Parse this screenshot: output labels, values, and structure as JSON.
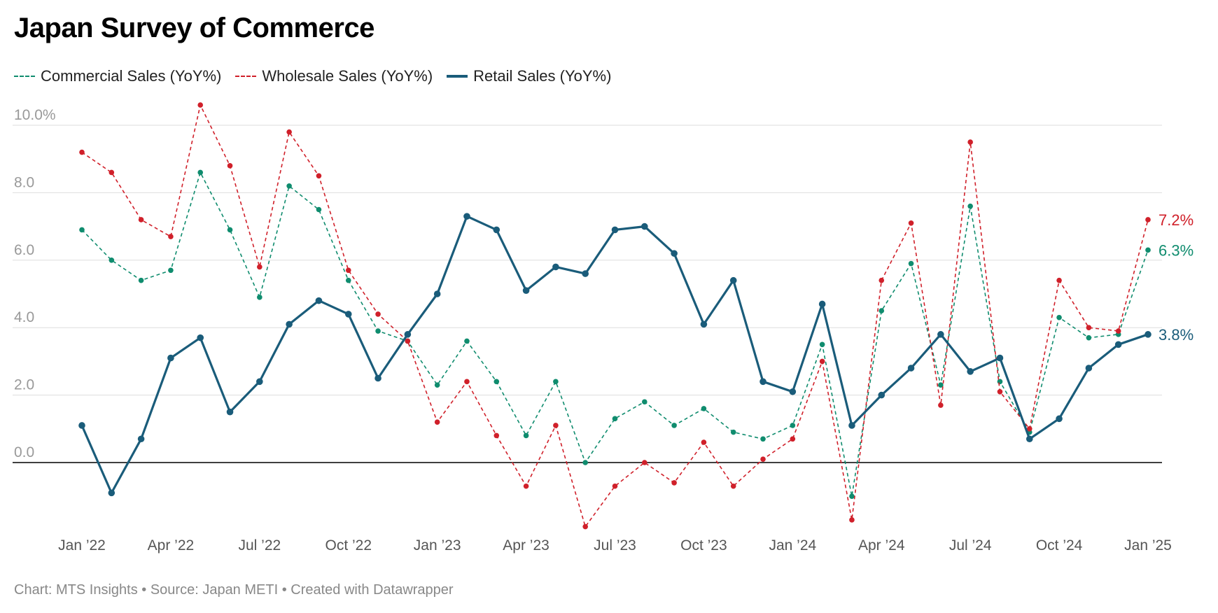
{
  "title": "Japan Survey of Commerce",
  "footer": "Chart: MTS Insights • Source: Japan METI • Created with Datawrapper",
  "chart_data": {
    "type": "line",
    "title": "Japan Survey of Commerce",
    "x_unit": "month",
    "x": [
      "2022-01",
      "2022-02",
      "2022-03",
      "2022-04",
      "2022-05",
      "2022-06",
      "2022-07",
      "2022-08",
      "2022-09",
      "2022-10",
      "2022-11",
      "2022-12",
      "2023-01",
      "2023-02",
      "2023-03",
      "2023-04",
      "2023-05",
      "2023-06",
      "2023-07",
      "2023-08",
      "2023-09",
      "2023-10",
      "2023-11",
      "2023-12",
      "2024-01",
      "2024-02",
      "2024-03",
      "2024-04",
      "2024-05",
      "2024-06",
      "2024-07",
      "2024-08",
      "2024-09",
      "2024-10",
      "2024-11",
      "2024-12",
      "2025-01"
    ],
    "x_tick_labels": [
      "Jan ’22",
      "Apr ’22",
      "Jul ’22",
      "Oct ’22",
      "Jan ’23",
      "Apr ’23",
      "Jul ’23",
      "Oct ’23",
      "Jan ’24",
      "Apr ’24",
      "Jul ’24",
      "Oct ’24",
      "Jan ’25"
    ],
    "x_tick_months": [
      "2022-01",
      "2022-04",
      "2022-07",
      "2022-10",
      "2023-01",
      "2023-04",
      "2023-07",
      "2023-10",
      "2024-01",
      "2024-04",
      "2024-07",
      "2024-10",
      "2025-01"
    ],
    "y_tick_values": [
      10,
      8,
      6,
      4,
      2,
      0
    ],
    "y_tick_labels": [
      "10.0%",
      "8.0",
      "6.0",
      "4.0",
      "2.0",
      "0.0"
    ],
    "ylim": [
      -2.0,
      10.0
    ],
    "grid": true,
    "legend_position": "top-left",
    "series": [
      {
        "name": "Commercial Sales (YoY%)",
        "color": "#0f8c6e",
        "style": "dashed",
        "end_label": "6.3%",
        "values": [
          6.9,
          6.0,
          5.4,
          5.7,
          8.6,
          6.9,
          4.9,
          8.2,
          7.5,
          5.4,
          3.9,
          3.6,
          2.3,
          3.6,
          2.4,
          0.8,
          2.4,
          0.0,
          1.3,
          1.8,
          1.1,
          1.6,
          0.9,
          0.7,
          1.1,
          3.5,
          -1.0,
          4.5,
          5.9,
          2.3,
          7.6,
          2.4,
          0.9,
          4.3,
          3.7,
          3.8,
          6.3
        ]
      },
      {
        "name": "Wholesale Sales (YoY%)",
        "color": "#d0202a",
        "style": "dashed",
        "end_label": "7.2%",
        "values": [
          9.2,
          8.6,
          7.2,
          6.7,
          10.6,
          8.8,
          5.8,
          9.8,
          8.5,
          5.7,
          4.4,
          3.6,
          1.2,
          2.4,
          0.8,
          -0.7,
          1.1,
          -1.9,
          -0.7,
          0.0,
          -0.6,
          0.6,
          -0.7,
          0.1,
          0.7,
          3.0,
          -1.7,
          5.4,
          7.1,
          1.7,
          9.5,
          2.1,
          1.0,
          5.4,
          4.0,
          3.9,
          7.2
        ]
      },
      {
        "name": "Retail Sales (YoY%)",
        "color": "#1a5c7a",
        "style": "solid",
        "end_label": "3.8%",
        "values": [
          1.1,
          -0.9,
          0.7,
          3.1,
          3.7,
          1.5,
          2.4,
          4.1,
          4.8,
          4.4,
          2.5,
          3.8,
          5.0,
          7.3,
          6.9,
          5.1,
          5.8,
          5.6,
          6.9,
          7.0,
          6.2,
          4.1,
          5.4,
          2.4,
          2.1,
          4.7,
          1.1,
          2.0,
          2.8,
          3.8,
          2.7,
          3.1,
          0.7,
          1.3,
          2.8,
          3.5,
          3.8
        ]
      }
    ]
  }
}
